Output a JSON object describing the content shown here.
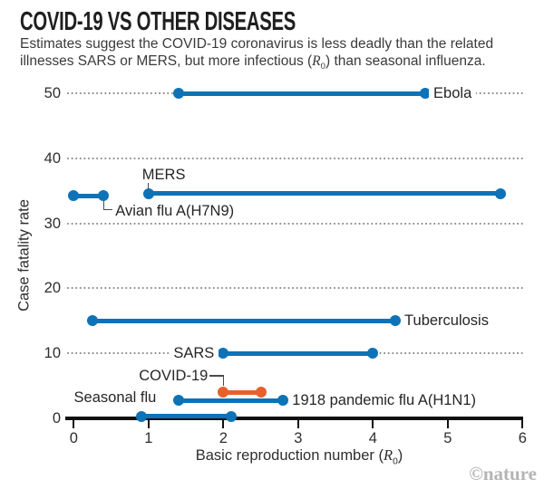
{
  "header": {
    "title": "COVID-19 VS OTHER DISEASES",
    "subtitle_line1": "Estimates suggest the COVID-19 coronavirus is less deadly than the related",
    "subtitle_line2_pre": "illnesses SARS or MERS, but more infectious (",
    "r_symbol": "R",
    "r_subscript": "0",
    "subtitle_line2_post": ") than seasonal influenza."
  },
  "axis": {
    "y_title": "Case fatality rate",
    "x_title_pre": "Basic reproduction number (",
    "r_symbol": "R",
    "r_subscript": "0",
    "x_title_post": ")"
  },
  "footer": {
    "credit": "©nature"
  },
  "colors": {
    "bar_blue": "#0e72b7",
    "bar_orange": "#e7612c",
    "axis_black": "#111111",
    "grid_gray": "#8a8a8a",
    "text_dark": "#262626",
    "credit_gray": "#b4b4b4"
  },
  "chart_data": {
    "type": "dumbbell",
    "title": "COVID-19 VS OTHER DISEASES",
    "xlabel": "Basic reproduction number (R0)",
    "ylabel": "Case fatality rate",
    "xlim": [
      0,
      6
    ],
    "ylim": [
      0,
      52
    ],
    "x_ticks": [
      0,
      1,
      2,
      3,
      4,
      5,
      6
    ],
    "y_ticks": [
      50,
      40,
      30,
      20,
      10,
      0
    ],
    "grid": "dotted horizontal gridlines at 10,20,30,40,50; solid black baseline at 0",
    "series": [
      {
        "name": "Ebola",
        "r0_min": 1.4,
        "r0_max": 4.7,
        "cfr": 50,
        "color": "#0e72b7",
        "label_side": "right",
        "label_whitebg": true
      },
      {
        "name": "MERS",
        "r0_min": 1.0,
        "r0_max": 5.7,
        "cfr": 34.6,
        "color": "#0e72b7",
        "label_side": "above-left-connector",
        "label_whitebg": false
      },
      {
        "name": "Avian flu A(H7N9)",
        "r0_min": 0.0,
        "r0_max": 0.4,
        "cfr": 34.2,
        "color": "#0e72b7",
        "label_side": "below-right-elbow",
        "label_whitebg": false
      },
      {
        "name": "Tuberculosis",
        "r0_min": 0.25,
        "r0_max": 4.3,
        "cfr": 15,
        "color": "#0e72b7",
        "label_side": "right",
        "label_whitebg": false
      },
      {
        "name": "SARS",
        "r0_min": 2.0,
        "r0_max": 4.0,
        "cfr": 10,
        "color": "#0e72b7",
        "label_side": "left",
        "label_whitebg": true
      },
      {
        "name": "COVID-19",
        "r0_min": 2.0,
        "r0_max": 2.5,
        "cfr": 4,
        "color": "#e7612c",
        "label_side": "above-left-elbow",
        "label_whitebg": false
      },
      {
        "name": "1918 pandemic flu A(H1N1)",
        "r0_min": 1.4,
        "r0_max": 2.8,
        "cfr": 2.7,
        "color": "#0e72b7",
        "label_side": "right",
        "label_whitebg": false
      },
      {
        "name": "Seasonal flu",
        "r0_min": 0.9,
        "r0_max": 2.1,
        "cfr": 0.3,
        "color": "#0e72b7",
        "label_side": "above-left",
        "label_whitebg": false
      }
    ]
  }
}
